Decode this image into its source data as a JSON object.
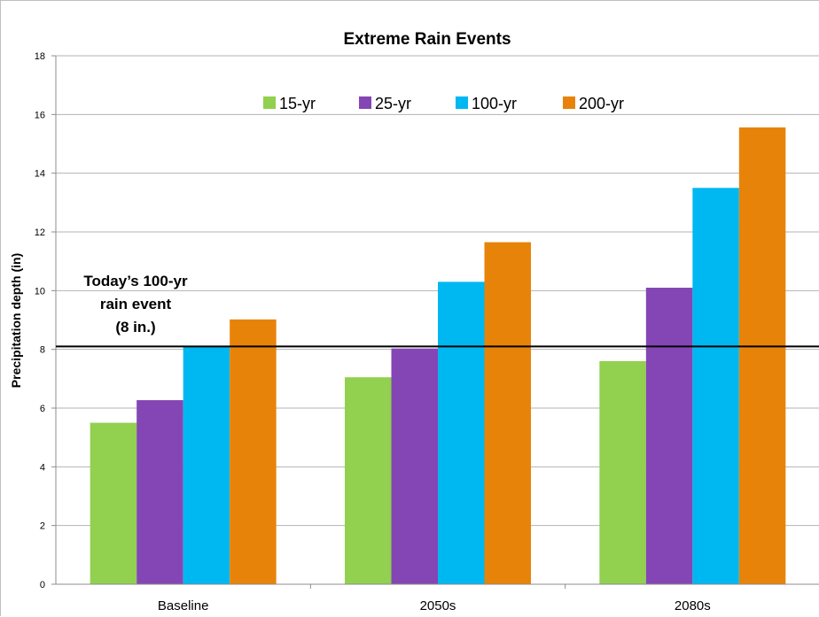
{
  "chart_data": {
    "type": "bar",
    "title": "Extreme Rain Events",
    "xlabel": "",
    "ylabel": "Precipitation depth (in)",
    "ylim": [
      0,
      18
    ],
    "yticks": [
      0,
      2,
      4,
      6,
      8,
      10,
      12,
      14,
      16,
      18
    ],
    "grid": true,
    "legend_position": "top",
    "categories": [
      "Baseline",
      "2050s",
      "2080s"
    ],
    "series": [
      {
        "name": "15-yr",
        "color": "#92d050",
        "values": [
          5.5,
          7.05,
          7.6
        ]
      },
      {
        "name": "25-yr",
        "color": "#8446b4",
        "values": [
          6.27,
          8.03,
          10.1
        ]
      },
      {
        "name": "100-yr",
        "color": "#00b8f1",
        "values": [
          8.1,
          10.3,
          13.5
        ]
      },
      {
        "name": "200-yr",
        "color": "#e8830a",
        "values": [
          9.02,
          11.65,
          15.56
        ]
      }
    ],
    "reference_line": {
      "value": 8.1,
      "label_lines": [
        "Today’s 100-yr",
        "rain event",
        "(8 in.)"
      ]
    },
    "colors": {
      "gridline": "#b3b3b3",
      "axis": "#8c8c8c",
      "reference_line": "#000000"
    }
  }
}
